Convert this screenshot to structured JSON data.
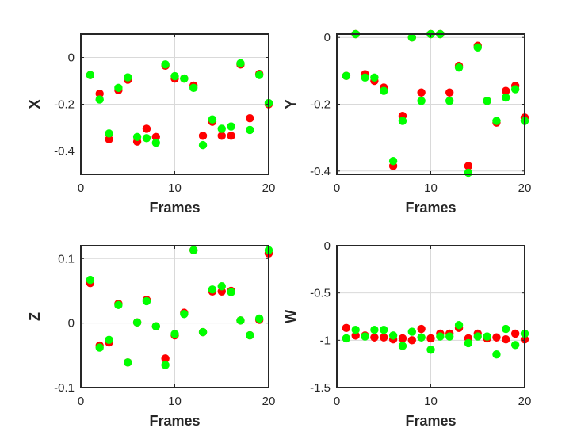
{
  "colors": {
    "series_red": "#ff0000",
    "series_green": "#00ff00",
    "grid": "#d9d9d9",
    "axis": "#262626"
  },
  "chart_data": [
    {
      "type": "scatter",
      "xlabel": "Frames",
      "ylabel": "X",
      "xlim": [
        0,
        20
      ],
      "ylim": [
        -0.5,
        0.1
      ],
      "xticks": [
        "0",
        "10",
        "20"
      ],
      "yticks": [
        "-0.4",
        "-0.2",
        "0"
      ],
      "grid": true,
      "series": [
        {
          "color": "red",
          "x": [
            1,
            2,
            3,
            4,
            5,
            6,
            7,
            8,
            9,
            10,
            11,
            12,
            13,
            14,
            15,
            16,
            17,
            18,
            19,
            20
          ],
          "y": [
            -0.075,
            -0.155,
            -0.35,
            -0.14,
            -0.095,
            -0.36,
            -0.305,
            -0.34,
            -0.035,
            -0.09,
            -0.09,
            -0.12,
            -0.335,
            -0.275,
            -0.335,
            -0.335,
            -0.03,
            -0.26,
            -0.07,
            -0.2
          ]
        },
        {
          "color": "green",
          "x": [
            1,
            2,
            3,
            4,
            5,
            6,
            7,
            8,
            9,
            10,
            11,
            12,
            13,
            14,
            15,
            16,
            17,
            18,
            19,
            20
          ],
          "y": [
            -0.075,
            -0.18,
            -0.325,
            -0.13,
            -0.085,
            -0.34,
            -0.345,
            -0.365,
            -0.03,
            -0.08,
            -0.09,
            -0.13,
            -0.375,
            -0.265,
            -0.305,
            -0.295,
            -0.025,
            -0.31,
            -0.075,
            -0.195
          ]
        }
      ]
    },
    {
      "type": "scatter",
      "xlabel": "Frames",
      "ylabel": "Y",
      "xlim": [
        0,
        20
      ],
      "ylim": [
        -0.41,
        0.01
      ],
      "xticks": [
        "0",
        "10",
        "20"
      ],
      "yticks": [
        "-0.4",
        "-0.2",
        "0"
      ],
      "grid": true,
      "series": [
        {
          "color": "red",
          "x": [
            1,
            2,
            3,
            4,
            5,
            6,
            7,
            8,
            9,
            10,
            11,
            12,
            13,
            14,
            15,
            16,
            17,
            18,
            19,
            20
          ],
          "y": [
            -0.115,
            0.01,
            -0.11,
            -0.13,
            -0.15,
            -0.385,
            -0.235,
            0.0,
            -0.165,
            0.01,
            0.01,
            -0.165,
            -0.085,
            -0.385,
            -0.025,
            -0.19,
            -0.255,
            -0.16,
            -0.145,
            -0.24
          ]
        },
        {
          "color": "green",
          "x": [
            1,
            2,
            3,
            4,
            5,
            6,
            7,
            8,
            9,
            10,
            11,
            12,
            13,
            14,
            15,
            16,
            17,
            18,
            19,
            20
          ],
          "y": [
            -0.115,
            0.01,
            -0.12,
            -0.12,
            -0.16,
            -0.37,
            -0.25,
            0.0,
            -0.19,
            0.01,
            0.01,
            -0.19,
            -0.09,
            -0.405,
            -0.03,
            -0.19,
            -0.25,
            -0.18,
            -0.155,
            -0.25
          ]
        }
      ]
    },
    {
      "type": "scatter",
      "xlabel": "Frames",
      "ylabel": "Z",
      "xlim": [
        0,
        20
      ],
      "ylim": [
        -0.1,
        0.12
      ],
      "xticks": [
        "0",
        "10",
        "20"
      ],
      "yticks": [
        "-0.1",
        "0",
        "0.1"
      ],
      "grid": true,
      "series": [
        {
          "color": "red",
          "x": [
            1,
            2,
            3,
            4,
            5,
            6,
            7,
            8,
            9,
            10,
            11,
            12,
            13,
            14,
            15,
            16,
            17,
            18,
            19,
            20
          ],
          "y": [
            0.062,
            -0.035,
            -0.03,
            0.03,
            -0.061,
            0.001,
            0.036,
            -0.005,
            -0.055,
            -0.019,
            0.016,
            0.113,
            -0.014,
            0.049,
            0.049,
            0.05,
            0.004,
            -0.019,
            0.005,
            0.108
          ]
        },
        {
          "color": "green",
          "x": [
            1,
            2,
            3,
            4,
            5,
            6,
            7,
            8,
            9,
            10,
            11,
            12,
            13,
            14,
            15,
            16,
            17,
            18,
            19,
            20
          ],
          "y": [
            0.067,
            -0.038,
            -0.026,
            0.028,
            -0.061,
            0.001,
            0.034,
            -0.005,
            -0.065,
            -0.017,
            0.014,
            0.113,
            -0.014,
            0.052,
            0.057,
            0.048,
            0.004,
            -0.019,
            0.007,
            0.113
          ]
        }
      ]
    },
    {
      "type": "scatter",
      "xlabel": "Frames",
      "ylabel": "W",
      "xlim": [
        0,
        20
      ],
      "ylim": [
        -1.5,
        0
      ],
      "xticks": [
        "0",
        "10",
        "20"
      ],
      "yticks": [
        "-1.5",
        "-1",
        "-0.5",
        "0"
      ],
      "grid": true,
      "series": [
        {
          "color": "red",
          "x": [
            1,
            2,
            3,
            4,
            5,
            6,
            7,
            8,
            9,
            10,
            11,
            12,
            13,
            14,
            15,
            16,
            17,
            18,
            19,
            20
          ],
          "y": [
            -0.87,
            -0.95,
            -0.95,
            -0.97,
            -0.97,
            -0.99,
            -0.98,
            -1.0,
            -0.88,
            -0.98,
            -0.93,
            -0.93,
            -0.87,
            -0.98,
            -0.93,
            -0.98,
            -0.97,
            -0.99,
            -0.93,
            -0.99
          ]
        },
        {
          "color": "green",
          "x": [
            1,
            2,
            3,
            4,
            5,
            6,
            7,
            8,
            9,
            10,
            11,
            12,
            13,
            14,
            15,
            16,
            17,
            18,
            19,
            20
          ],
          "y": [
            -0.98,
            -0.89,
            -0.96,
            -0.89,
            -0.89,
            -0.95,
            -1.06,
            -0.91,
            -0.97,
            -1.1,
            -0.96,
            -0.96,
            -0.84,
            -1.03,
            -0.96,
            -0.96,
            -1.15,
            -0.88,
            -1.05,
            -0.93
          ]
        }
      ]
    }
  ]
}
